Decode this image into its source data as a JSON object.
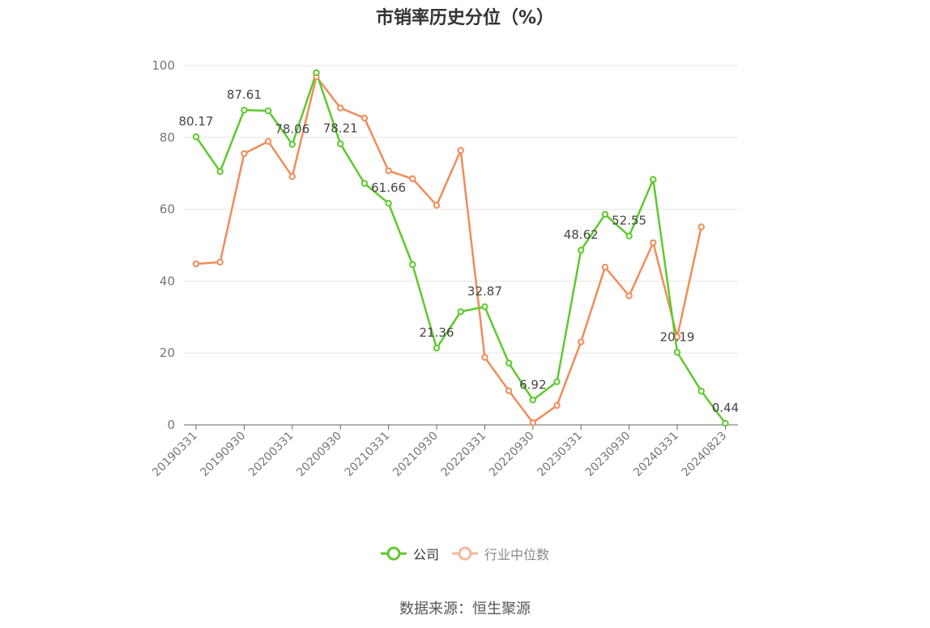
{
  "title": "市销率历史分位（%）",
  "source": "数据来源：恒生聚源",
  "colors": {
    "company": "#5fc92e",
    "industry": "#f08c5a",
    "grid": "#e6e6e6",
    "axis": "#666666"
  },
  "legend": {
    "company": "公司",
    "industry": "行业中位数"
  },
  "chart_data": {
    "type": "line",
    "x": [
      "20190331",
      "20190630",
      "20190930",
      "20191231",
      "20200331",
      "20200630",
      "20200930",
      "20201231",
      "20210331",
      "20210630",
      "20210930",
      "20211231",
      "20220331",
      "20220630",
      "20220930",
      "20221231",
      "20230331",
      "20230630",
      "20230930",
      "20231231",
      "20240331",
      "20240630",
      "20240823"
    ],
    "xticks": [
      "20190331",
      "20190930",
      "20200331",
      "20200930",
      "20210331",
      "20210930",
      "20220331",
      "20220930",
      "20230331",
      "20230930",
      "20240331",
      "20240823"
    ],
    "ylim": [
      0,
      100
    ],
    "yticks": [
      0,
      20,
      40,
      60,
      80,
      100
    ],
    "grid": true,
    "legend_position": "bottom",
    "series": [
      {
        "name": "公司",
        "values": [
          80.17,
          70.5,
          87.61,
          87.4,
          78.06,
          98.0,
          78.21,
          67.2,
          61.66,
          44.6,
          21.36,
          31.5,
          32.87,
          17.2,
          6.92,
          12.0,
          48.62,
          58.6,
          52.55,
          68.3,
          20.19,
          9.4,
          0.44
        ]
      },
      {
        "name": "行业中位数",
        "values": [
          44.8,
          45.3,
          75.5,
          78.9,
          69.1,
          96.9,
          88.2,
          85.4,
          70.7,
          68.5,
          61.1,
          76.4,
          18.8,
          9.5,
          0.6,
          5.4,
          23.1,
          43.9,
          35.9,
          50.7,
          24.5,
          55.1,
          null
        ]
      }
    ],
    "data_labels": [
      {
        "series": 0,
        "index": 0,
        "text": "80.17"
      },
      {
        "series": 0,
        "index": 2,
        "text": "87.61"
      },
      {
        "series": 0,
        "index": 4,
        "text": "78.06"
      },
      {
        "series": 0,
        "index": 6,
        "text": "78.21"
      },
      {
        "series": 0,
        "index": 8,
        "text": "61.66"
      },
      {
        "series": 0,
        "index": 10,
        "text": "21.36"
      },
      {
        "series": 0,
        "index": 12,
        "text": "32.87"
      },
      {
        "series": 0,
        "index": 14,
        "text": "6.92"
      },
      {
        "series": 0,
        "index": 16,
        "text": "48.62"
      },
      {
        "series": 0,
        "index": 18,
        "text": "52.55"
      },
      {
        "series": 0,
        "index": 20,
        "text": "20.19"
      },
      {
        "series": 0,
        "index": 22,
        "text": "0.44"
      }
    ]
  }
}
